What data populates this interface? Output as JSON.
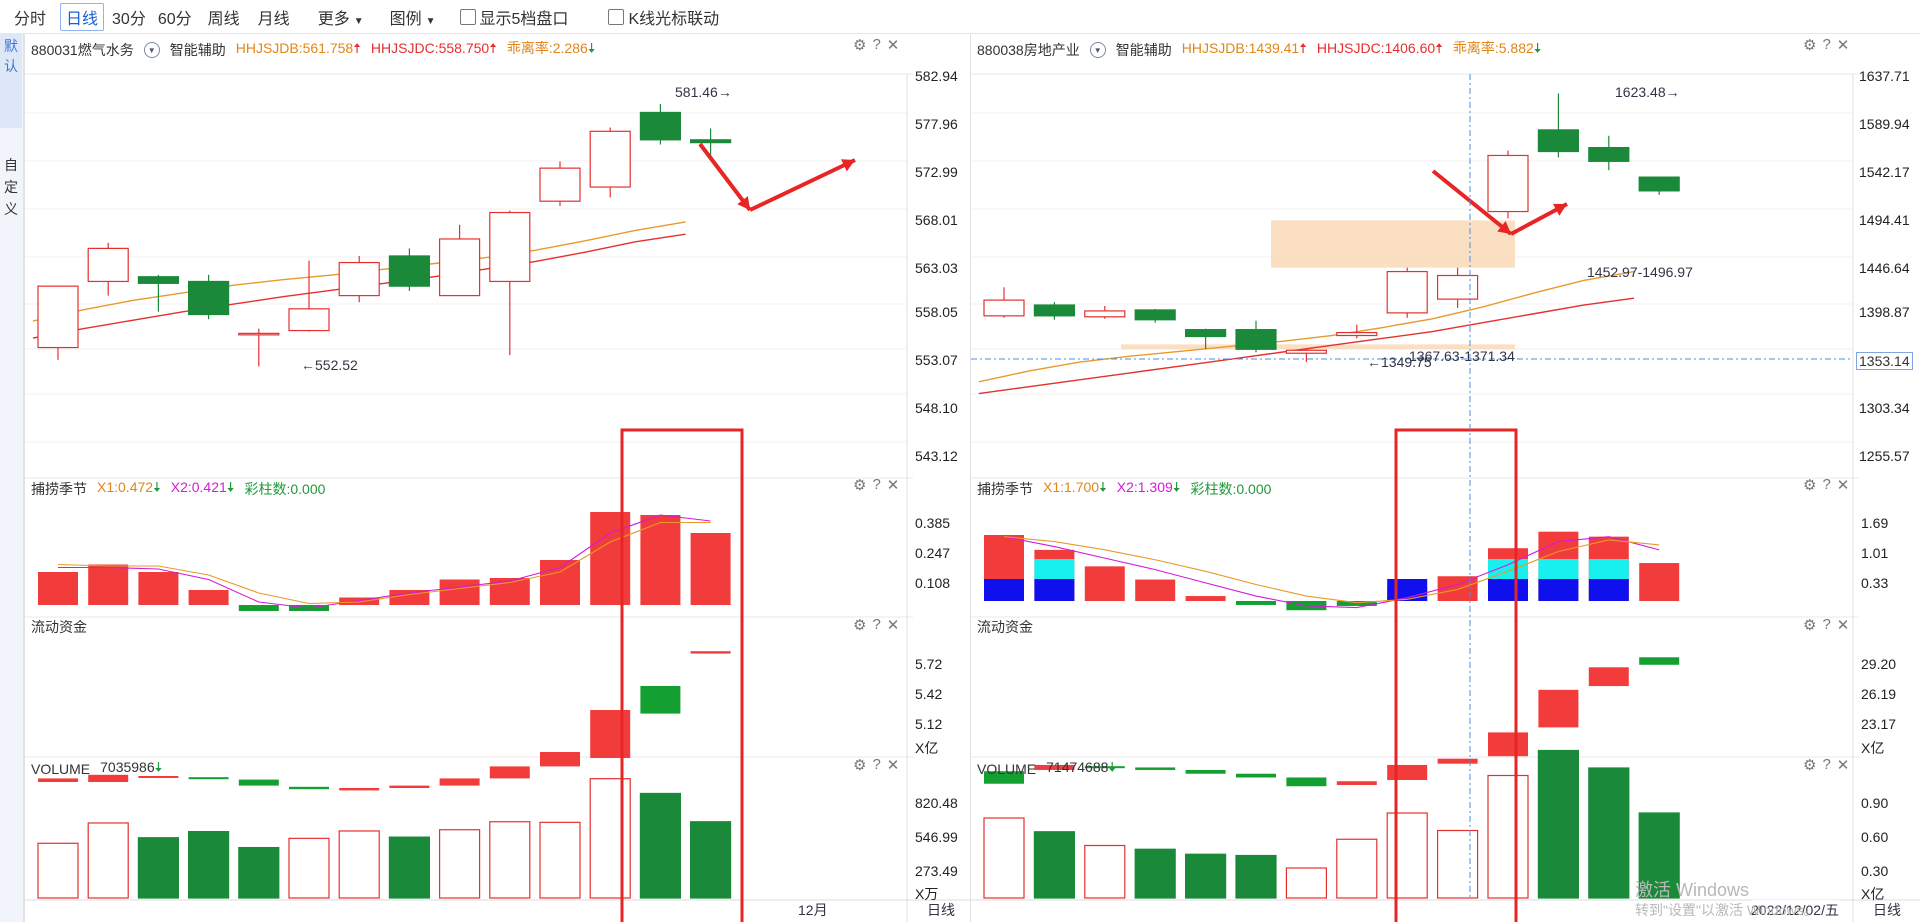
{
  "toolbar": {
    "tabs": [
      "分时",
      "日线",
      "30分",
      "60分",
      "周线",
      "月线"
    ],
    "active_tab": "日线",
    "more_label": "更多",
    "legend_label": "图例",
    "check1_label": "显示5档盘口",
    "check2_label": "K线光标联动"
  },
  "sidebar": {
    "tab_default": "默认",
    "tab_custom": "自定义"
  },
  "colors": {
    "up": "#e53030",
    "down": "#1a8a3a",
    "ma1": "#e89a2a",
    "ma2": "#e53030",
    "highlight": "#f9d9b8",
    "frame": "#e82424"
  },
  "left": {
    "code_name": "880031燃气水务",
    "assist": "智能辅助",
    "hhjsjdb": "HHJSJDB:561.758",
    "hhjsjdc": "HHJSJDC:558.750",
    "ratio": "乖离率:2.286",
    "price_ticks": [
      "582.94",
      "577.96",
      "572.99",
      "568.01",
      "563.03",
      "558.05",
      "553.07",
      "548.10",
      "543.12"
    ],
    "high_label": "581.46",
    "low_label": "552.52",
    "ind1_name": "捕捞季节",
    "ind1_x1": "X1:0.472",
    "ind1_x2": "X2:0.421",
    "ind1_bars": "彩柱数:0.000",
    "ind1_ticks": [
      "0.385",
      "0.247",
      "0.108"
    ],
    "ind2_name": "流动资金",
    "ind2_ticks": [
      "5.72",
      "5.42",
      "5.12"
    ],
    "ind2_unit": "X亿",
    "vol_name": "VOLUME",
    "vol_value": "7035986",
    "vol_ticks": [
      "820.48",
      "546.99",
      "273.49"
    ],
    "vol_unit": "X万",
    "month_label": "12月",
    "period_label": "日线",
    "candles": [
      {
        "o": 554.5,
        "c": 561.0,
        "h": 561.0,
        "l": 553.2
      },
      {
        "o": 561.5,
        "c": 565.0,
        "h": 565.6,
        "l": 560.0
      },
      {
        "o": 562.0,
        "c": 561.3,
        "h": 562.2,
        "l": 558.3
      },
      {
        "o": 561.5,
        "c": 558.0,
        "h": 562.2,
        "l": 557.5
      },
      {
        "o": 556.0,
        "c": 556.0,
        "h": 556.5,
        "l": 552.5
      },
      {
        "o": 556.3,
        "c": 558.6,
        "h": 563.7,
        "l": 556.2
      },
      {
        "o": 560.0,
        "c": 563.5,
        "h": 564.2,
        "l": 559.3
      },
      {
        "o": 564.2,
        "c": 561.0,
        "h": 565.0,
        "l": 560.5
      },
      {
        "o": 560.0,
        "c": 566.0,
        "h": 567.5,
        "l": 560.0
      },
      {
        "o": 561.5,
        "c": 568.8,
        "h": 569.0,
        "l": 553.7
      },
      {
        "o": 570.0,
        "c": 573.5,
        "h": 574.2,
        "l": 569.5
      },
      {
        "o": 571.5,
        "c": 577.4,
        "h": 577.8,
        "l": 570.4
      },
      {
        "o": 579.4,
        "c": 576.5,
        "h": 580.3,
        "l": 576.0
      },
      {
        "o": 576.5,
        "c": 576.2,
        "h": 577.7,
        "l": 574.5
      }
    ],
    "ma1": [
      557.3,
      558.5,
      559.5,
      560.3,
      561.1,
      561.7,
      562.2,
      562.8,
      563.4,
      564.0,
      564.8,
      565.8,
      566.9,
      567.8
    ],
    "ma2": [
      555.5,
      556.5,
      557.4,
      558.3,
      559.1,
      559.9,
      560.6,
      561.3,
      562.0,
      562.8,
      563.6,
      564.6,
      565.7,
      566.5
    ],
    "ind1": [
      0.22,
      0.27,
      0.22,
      0.1,
      -0.04,
      -0.04,
      0.05,
      0.1,
      0.17,
      0.18,
      0.3,
      0.62,
      0.6,
      0.48
    ],
    "ind1_line1": [
      0.25,
      0.25,
      0.24,
      0.17,
      0.02,
      -0.02,
      0.03,
      0.08,
      0.12,
      0.16,
      0.25,
      0.48,
      0.6,
      0.56
    ],
    "ind1_line2": [
      0.27,
      0.26,
      0.26,
      0.2,
      0.08,
      0.01,
      0.02,
      0.07,
      0.11,
      0.15,
      0.22,
      0.42,
      0.55,
      0.55
    ],
    "ind2": [
      {
        "o": 4.85,
        "c": 4.88
      },
      {
        "o": 4.85,
        "c": 4.91
      },
      {
        "o": 4.89,
        "c": 4.9
      },
      {
        "o": 4.89,
        "c": 4.88
      },
      {
        "o": 4.87,
        "c": 4.82
      },
      {
        "o": 4.81,
        "c": 4.79
      },
      {
        "o": 4.78,
        "c": 4.8
      },
      {
        "o": 4.8,
        "c": 4.82
      },
      {
        "o": 4.82,
        "c": 4.88
      },
      {
        "o": 4.88,
        "c": 4.98
      },
      {
        "o": 4.98,
        "c": 5.1
      },
      {
        "o": 5.05,
        "c": 5.45
      },
      {
        "o": 5.65,
        "c": 5.42
      },
      {
        "o": 5.92,
        "c": 5.94
      }
    ],
    "volume": [
      {
        "v": 445,
        "up": true
      },
      {
        "v": 610,
        "up": true
      },
      {
        "v": 490,
        "up": false
      },
      {
        "v": 540,
        "up": false
      },
      {
        "v": 410,
        "up": false
      },
      {
        "v": 485,
        "up": true
      },
      {
        "v": 545,
        "up": true
      },
      {
        "v": 495,
        "up": false
      },
      {
        "v": 555,
        "up": true
      },
      {
        "v": 620,
        "up": true
      },
      {
        "v": 615,
        "up": true
      },
      {
        "v": 970,
        "up": true
      },
      {
        "v": 850,
        "up": false
      },
      {
        "v": 620,
        "up": false
      }
    ]
  },
  "right": {
    "code_name": "880038房地产业",
    "assist": "智能辅助",
    "hhjsjdb": "HHJSJDB:1439.41",
    "hhjsjdc": "HHJSJDC:1406.60",
    "ratio": "乖离率:5.882",
    "price_ticks": [
      "1637.71",
      "1589.94",
      "1542.17",
      "1494.41",
      "1446.64",
      "1398.87",
      "1353.14",
      "1303.34",
      "1255.57"
    ],
    "high_label": "1623.48",
    "low_label": "1349.75",
    "range_label_upper": "1452.97-1496.97",
    "range_label_lower": "1367.63-1371.34",
    "crosshair_price": "1353.14",
    "ind1_name": "捕捞季节",
    "ind1_x1": "X1:1.700",
    "ind1_x2": "X2:1.309",
    "ind1_bars": "彩柱数:0.000",
    "ind1_ticks": [
      "1.69",
      "1.01",
      "0.33"
    ],
    "ind2_name": "流动资金",
    "ind2_ticks": [
      "29.20",
      "26.19",
      "23.17"
    ],
    "ind2_unit": "X亿",
    "vol_name": "VOLUME",
    "vol_value": "71474688",
    "vol_ticks": [
      "0.90",
      "0.60",
      "0.30"
    ],
    "vol_unit": "X亿",
    "date_label": "2022/12/02/五",
    "period_label": "日线",
    "candles": [
      {
        "o": 1397,
        "c": 1413,
        "h": 1426,
        "l": 1395
      },
      {
        "o": 1408,
        "c": 1397,
        "h": 1411,
        "l": 1393
      },
      {
        "o": 1396,
        "c": 1402,
        "h": 1407,
        "l": 1394
      },
      {
        "o": 1403,
        "c": 1393,
        "h": 1404,
        "l": 1390
      },
      {
        "o": 1383,
        "c": 1376,
        "h": 1384,
        "l": 1363
      },
      {
        "o": 1383,
        "c": 1363,
        "h": 1392,
        "l": 1360
      },
      {
        "o": 1359,
        "c": 1362,
        "h": 1363,
        "l": 1350
      },
      {
        "o": 1377,
        "c": 1380,
        "h": 1388,
        "l": 1374
      },
      {
        "o": 1400,
        "c": 1442,
        "h": 1446,
        "l": 1395
      },
      {
        "o": 1414,
        "c": 1438,
        "h": 1446,
        "l": 1405
      },
      {
        "o": 1503,
        "c": 1560,
        "h": 1565,
        "l": 1496
      },
      {
        "o": 1586,
        "c": 1564,
        "h": 1623,
        "l": 1558
      },
      {
        "o": 1568,
        "c": 1554,
        "h": 1580,
        "l": 1545
      },
      {
        "o": 1538,
        "c": 1524,
        "h": 1538,
        "l": 1520
      }
    ],
    "ma1": [
      1330,
      1341,
      1350,
      1356,
      1361,
      1366,
      1371,
      1377,
      1385,
      1394,
      1406,
      1420,
      1433,
      1442
    ],
    "ma2": [
      1318,
      1325,
      1332,
      1339,
      1346,
      1353,
      1360,
      1367,
      1374,
      1381,
      1390,
      1399,
      1408,
      1415
    ],
    "ind1": [
      2.0,
      1.55,
      1.05,
      0.65,
      0.15,
      -0.12,
      -0.28,
      -0.15,
      0.45,
      0.75,
      1.6,
      2.1,
      1.95,
      1.15
    ],
    "ind1_cyan": [
      false,
      true,
      false,
      false,
      false,
      false,
      false,
      false,
      false,
      false,
      true,
      true,
      true,
      false
    ],
    "ind1_blue": [
      true,
      true,
      false,
      false,
      false,
      false,
      false,
      false,
      true,
      false,
      true,
      true,
      true,
      false
    ],
    "ind1_line1": [
      1.95,
      1.65,
      1.3,
      0.95,
      0.55,
      0.15,
      -0.15,
      -0.2,
      0.1,
      0.5,
      1.1,
      1.8,
      1.95,
      1.55
    ],
    "ind1_line2": [
      1.95,
      1.8,
      1.55,
      1.25,
      0.9,
      0.5,
      0.15,
      -0.05,
      0.05,
      0.35,
      0.9,
      1.5,
      1.85,
      1.7
    ],
    "ind2": [
      {
        "o": 22.5,
        "c": 21.5
      },
      {
        "o": 22.6,
        "c": 23.0
      },
      {
        "o": 22.9,
        "c": 22.8
      },
      {
        "o": 22.8,
        "c": 22.6
      },
      {
        "o": 22.6,
        "c": 22.3
      },
      {
        "o": 22.3,
        "c": 22.0
      },
      {
        "o": 22.0,
        "c": 21.3
      },
      {
        "o": 21.4,
        "c": 21.7
      },
      {
        "o": 21.8,
        "c": 23.0
      },
      {
        "o": 23.1,
        "c": 23.5
      },
      {
        "o": 23.7,
        "c": 25.6
      },
      {
        "o": 26.0,
        "c": 29.0
      },
      {
        "o": 29.3,
        "c": 30.8
      },
      {
        "o": 31.6,
        "c": 31.0
      }
    ],
    "volume": [
      {
        "v": 0.64,
        "up": true
      },
      {
        "v": 0.53,
        "up": false
      },
      {
        "v": 0.42,
        "up": true
      },
      {
        "v": 0.39,
        "up": false
      },
      {
        "v": 0.35,
        "up": false
      },
      {
        "v": 0.34,
        "up": false
      },
      {
        "v": 0.24,
        "up": true
      },
      {
        "v": 0.47,
        "up": true
      },
      {
        "v": 0.68,
        "up": true
      },
      {
        "v": 0.54,
        "up": true
      },
      {
        "v": 0.98,
        "up": true
      },
      {
        "v": 1.18,
        "up": false
      },
      {
        "v": 1.04,
        "up": false
      },
      {
        "v": 0.68,
        "up": false
      }
    ]
  },
  "watermark": {
    "line1": "激活 Windows",
    "line2": "转到\"设置\"以激活 Windows。"
  }
}
